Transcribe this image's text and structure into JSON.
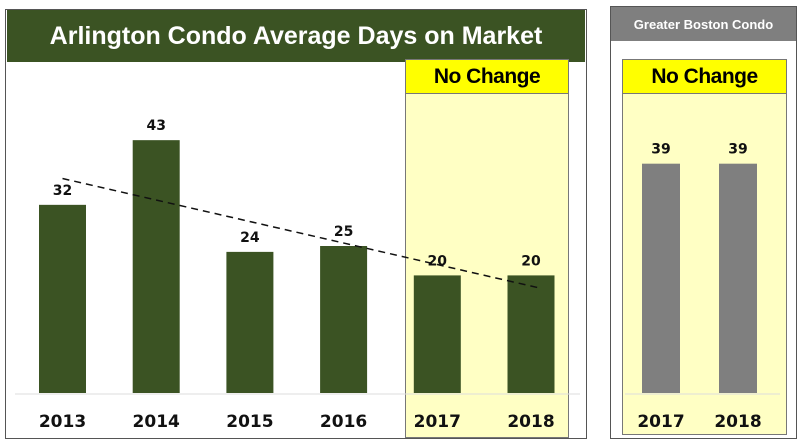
{
  "chart_data": [
    {
      "type": "bar",
      "title": "Arlington Condo Average Days on Market",
      "categories": [
        "2013",
        "2014",
        "2015",
        "2016",
        "2017",
        "2018"
      ],
      "values": [
        32,
        43,
        24,
        25,
        20,
        20
      ],
      "trendline": "linear dashed",
      "highlight_label": "No Change",
      "color": "#3b5323",
      "ylim": [
        0,
        45
      ]
    },
    {
      "type": "bar",
      "title": "Greater Boston Condo",
      "categories": [
        "2017",
        "2018"
      ],
      "values": [
        39,
        39
      ],
      "highlight_label": "No Change",
      "color": "#7f7f7f",
      "ylim": [
        0,
        45
      ]
    }
  ]
}
